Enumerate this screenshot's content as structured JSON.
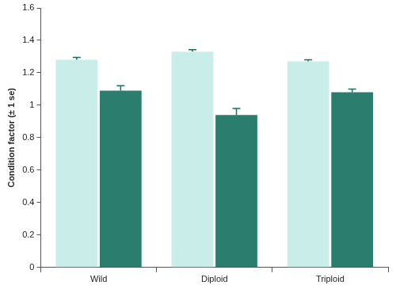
{
  "chart_data": {
    "type": "bar",
    "y_label": "Condition factor (± 1 se)",
    "categories": [
      "Wild",
      "Diploid",
      "Triploid"
    ],
    "series": [
      {
        "color": "#c9eeea",
        "values": [
          1.28,
          1.33,
          1.27
        ],
        "errors": [
          0.015,
          0.012,
          0.01
        ]
      },
      {
        "color": "#2b7d6d",
        "values": [
          1.09,
          0.94,
          1.08
        ],
        "errors": [
          0.03,
          0.04,
          0.02
        ]
      }
    ],
    "ylim": [
      0,
      1.6
    ],
    "yticks": [
      0,
      0.2,
      0.4,
      0.6,
      0.8,
      1,
      1.2,
      1.4,
      1.6
    ],
    "grid": false
  }
}
